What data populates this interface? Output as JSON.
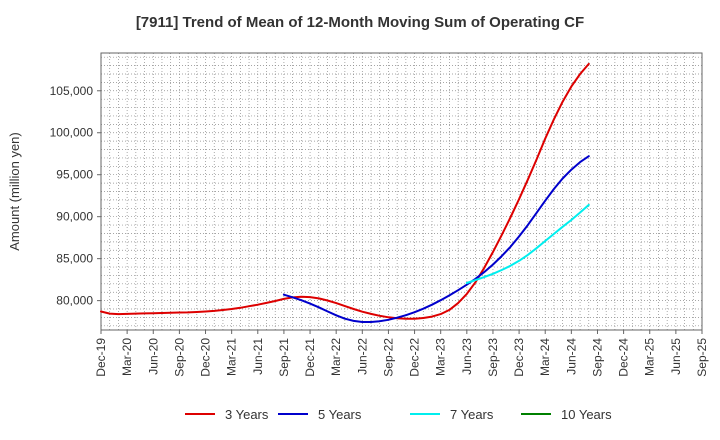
{
  "chart_data": {
    "type": "line",
    "title": "[7911]  Trend of Mean of 12-Month Moving Sum of Operating CF",
    "ylabel": "Amount (million yen)",
    "xlabel": "",
    "ylim": [
      76500,
      109500
    ],
    "yticks": [
      80000,
      85000,
      90000,
      95000,
      100000,
      105000
    ],
    "ytick_labels": [
      "80,000",
      "85,000",
      "90,000",
      "95,000",
      "100,000",
      "105,000"
    ],
    "x_range_months": [
      0,
      69
    ],
    "xticks": [
      {
        "label": "Dec-19",
        "month": 0
      },
      {
        "label": "Mar-20",
        "month": 3
      },
      {
        "label": "Jun-20",
        "month": 6
      },
      {
        "label": "Sep-20",
        "month": 9
      },
      {
        "label": "Dec-20",
        "month": 12
      },
      {
        "label": "Mar-21",
        "month": 15
      },
      {
        "label": "Jun-21",
        "month": 18
      },
      {
        "label": "Sep-21",
        "month": 21
      },
      {
        "label": "Dec-21",
        "month": 24
      },
      {
        "label": "Mar-22",
        "month": 27
      },
      {
        "label": "Jun-22",
        "month": 30
      },
      {
        "label": "Sep-22",
        "month": 33
      },
      {
        "label": "Dec-22",
        "month": 36
      },
      {
        "label": "Mar-23",
        "month": 39
      },
      {
        "label": "Jun-23",
        "month": 42
      },
      {
        "label": "Sep-23",
        "month": 45
      },
      {
        "label": "Dec-23",
        "month": 48
      },
      {
        "label": "Mar-24",
        "month": 51
      },
      {
        "label": "Jun-24",
        "month": 54
      },
      {
        "label": "Sep-24",
        "month": 57
      },
      {
        "label": "Dec-24",
        "month": 60
      },
      {
        "label": "Mar-25",
        "month": 63
      },
      {
        "label": "Jun-25",
        "month": 66
      },
      {
        "label": "Sep-25",
        "month": 69
      }
    ],
    "grid": true,
    "legend_position": "bottom",
    "series": [
      {
        "name": "3 Years",
        "color": "#dd0000",
        "points": [
          [
            0,
            78700
          ],
          [
            1,
            78450
          ],
          [
            2,
            78400
          ],
          [
            3,
            78420
          ],
          [
            4,
            78450
          ],
          [
            5,
            78480
          ],
          [
            6,
            78500
          ],
          [
            7,
            78520
          ],
          [
            8,
            78550
          ],
          [
            9,
            78580
          ],
          [
            10,
            78600
          ],
          [
            11,
            78640
          ],
          [
            12,
            78700
          ],
          [
            13,
            78780
          ],
          [
            14,
            78880
          ],
          [
            15,
            79000
          ],
          [
            16,
            79150
          ],
          [
            17,
            79330
          ],
          [
            18,
            79520
          ],
          [
            19,
            79730
          ],
          [
            20,
            79950
          ],
          [
            21,
            80200
          ],
          [
            22,
            80380
          ],
          [
            23,
            80450
          ],
          [
            24,
            80420
          ],
          [
            25,
            80270
          ],
          [
            26,
            80020
          ],
          [
            27,
            79700
          ],
          [
            28,
            79350
          ],
          [
            29,
            79000
          ],
          [
            30,
            78680
          ],
          [
            31,
            78420
          ],
          [
            32,
            78190
          ],
          [
            33,
            78010
          ],
          [
            34,
            77900
          ],
          [
            35,
            77840
          ],
          [
            36,
            77850
          ],
          [
            37,
            77930
          ],
          [
            38,
            78100
          ],
          [
            39,
            78400
          ],
          [
            40,
            78900
          ],
          [
            41,
            79700
          ],
          [
            42,
            80800
          ],
          [
            43,
            82200
          ],
          [
            44,
            83900
          ],
          [
            45,
            85800
          ],
          [
            46,
            87800
          ],
          [
            47,
            89900
          ],
          [
            48,
            92100
          ],
          [
            49,
            94400
          ],
          [
            50,
            96800
          ],
          [
            51,
            99300
          ],
          [
            52,
            101600
          ],
          [
            53,
            103700
          ],
          [
            54,
            105500
          ],
          [
            55,
            107000
          ],
          [
            56,
            108200
          ]
        ]
      },
      {
        "name": "5 Years",
        "color": "#0000cc",
        "points": [
          [
            21,
            80700
          ],
          [
            22,
            80400
          ],
          [
            23,
            80050
          ],
          [
            24,
            79650
          ],
          [
            25,
            79200
          ],
          [
            26,
            78720
          ],
          [
            27,
            78250
          ],
          [
            28,
            77850
          ],
          [
            29,
            77580
          ],
          [
            30,
            77450
          ],
          [
            31,
            77450
          ],
          [
            32,
            77550
          ],
          [
            33,
            77720
          ],
          [
            34,
            77960
          ],
          [
            35,
            78260
          ],
          [
            36,
            78620
          ],
          [
            37,
            79040
          ],
          [
            38,
            79520
          ],
          [
            39,
            80050
          ],
          [
            40,
            80620
          ],
          [
            41,
            81240
          ],
          [
            42,
            81900
          ],
          [
            43,
            82600
          ],
          [
            44,
            83400
          ],
          [
            45,
            84300
          ],
          [
            46,
            85300
          ],
          [
            47,
            86400
          ],
          [
            48,
            87650
          ],
          [
            49,
            89000
          ],
          [
            50,
            90450
          ],
          [
            51,
            91900
          ],
          [
            52,
            93300
          ],
          [
            53,
            94550
          ],
          [
            54,
            95600
          ],
          [
            55,
            96500
          ],
          [
            56,
            97200
          ]
        ]
      },
      {
        "name": "7 Years",
        "color": "#00eeee",
        "points": [
          [
            42,
            82100
          ],
          [
            43,
            82450
          ],
          [
            44,
            82800
          ],
          [
            45,
            83200
          ],
          [
            46,
            83650
          ],
          [
            47,
            84150
          ],
          [
            48,
            84750
          ],
          [
            49,
            85450
          ],
          [
            50,
            86250
          ],
          [
            51,
            87100
          ],
          [
            52,
            87950
          ],
          [
            53,
            88800
          ],
          [
            54,
            89600
          ],
          [
            55,
            90500
          ],
          [
            56,
            91400
          ]
        ]
      },
      {
        "name": "10 Years",
        "color": "#008000",
        "points": []
      }
    ]
  }
}
